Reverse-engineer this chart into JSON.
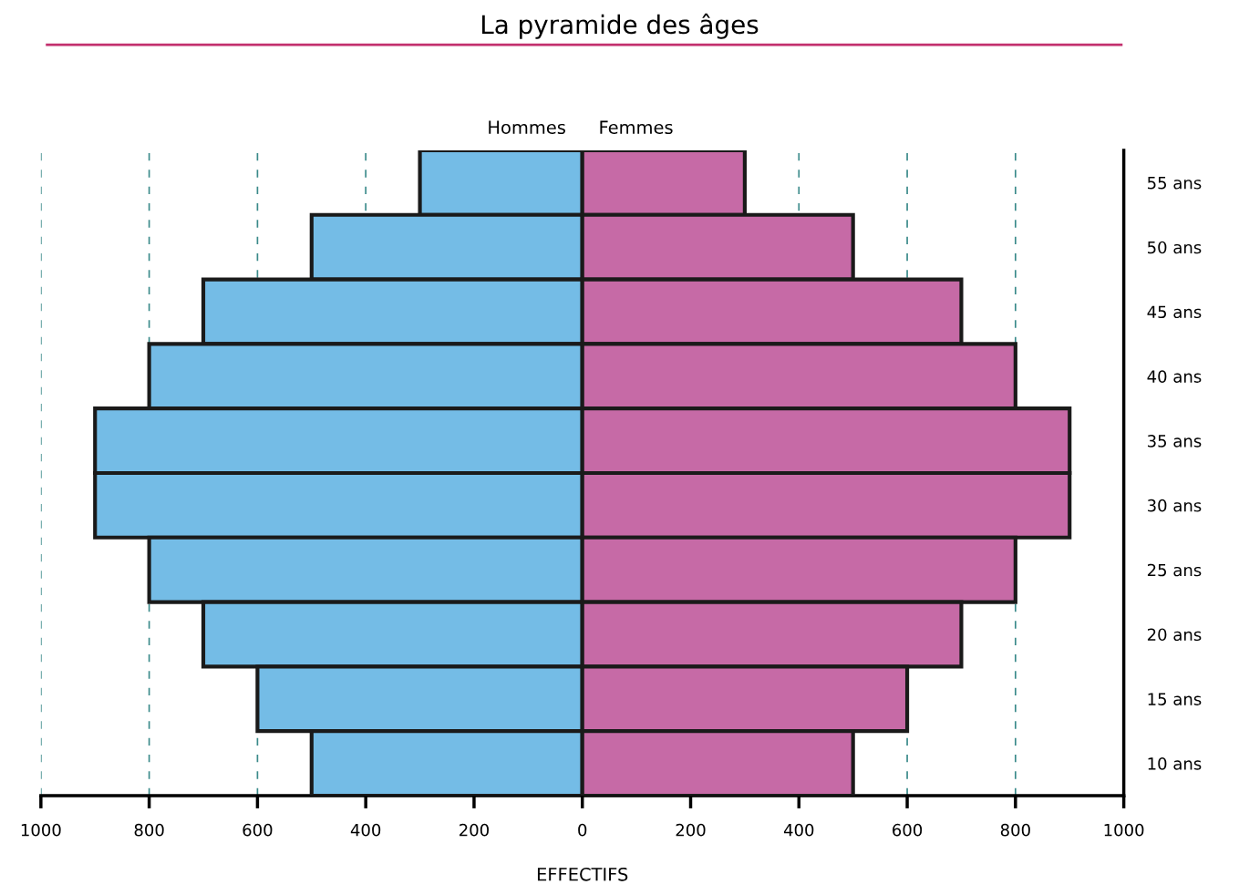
{
  "chart_data": {
    "type": "bar",
    "orientation": "horizontal",
    "title": "La pyramide des âges",
    "xlabel": "EFFECTIFS",
    "categories": [
      "55 ans",
      "50 ans",
      "45 ans",
      "40 ans",
      "35 ans",
      "30 ans",
      "25 ans",
      "20 ans",
      "15 ans",
      "10 ans"
    ],
    "series": [
      {
        "name": "Hommes",
        "color": "#74bce6",
        "values": [
          -300,
          -500,
          -700,
          -800,
          -900,
          -900,
          -800,
          -700,
          -600,
          -500
        ]
      },
      {
        "name": "Femmes",
        "color": "#c66aa6",
        "values": [
          300,
          500,
          700,
          800,
          900,
          900,
          800,
          700,
          600,
          500
        ]
      }
    ],
    "xlim": [
      -1000,
      1000
    ],
    "xticks": [
      {
        "value": -1000,
        "label": "1000"
      },
      {
        "value": -800,
        "label": "800"
      },
      {
        "value": -600,
        "label": "600"
      },
      {
        "value": -400,
        "label": "400"
      },
      {
        "value": -200,
        "label": "200"
      },
      0,
      200,
      400,
      600,
      800,
      1000
    ],
    "grid": "x",
    "legend": "top",
    "stacked": true
  }
}
